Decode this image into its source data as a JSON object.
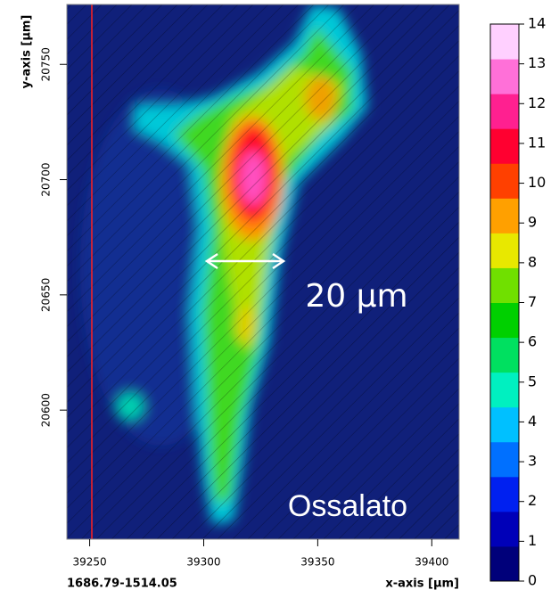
{
  "chart_data": {
    "type": "heatmap",
    "xlabel": "x-axis [µm]",
    "ylabel": "y-axis [µm]",
    "footer": "1686.79-1514.05",
    "annotations": [
      "20 µm",
      "Ossalato"
    ],
    "xlim": [
      39240,
      39412
    ],
    "xticks": [
      39250,
      39300,
      39350,
      39400
    ],
    "ylim": [
      20544,
      20776
    ],
    "yticks": [
      20600,
      20650,
      20700,
      20750
    ],
    "colorbar": {
      "lim": [
        0,
        14
      ],
      "ticks": [
        0,
        1,
        2,
        3,
        4,
        5,
        6,
        7,
        8,
        9,
        10,
        11,
        12,
        13,
        14
      ],
      "colors": [
        "#00007a",
        "#0000b8",
        "#0020f0",
        "#0070ff",
        "#00c0ff",
        "#00f0c0",
        "#00e060",
        "#00d000",
        "#70e000",
        "#e8e800",
        "#ffa000",
        "#ff4000",
        "#ff0030",
        "#ff2090",
        "#ff70d8",
        "#ffd0ff"
      ]
    }
  }
}
